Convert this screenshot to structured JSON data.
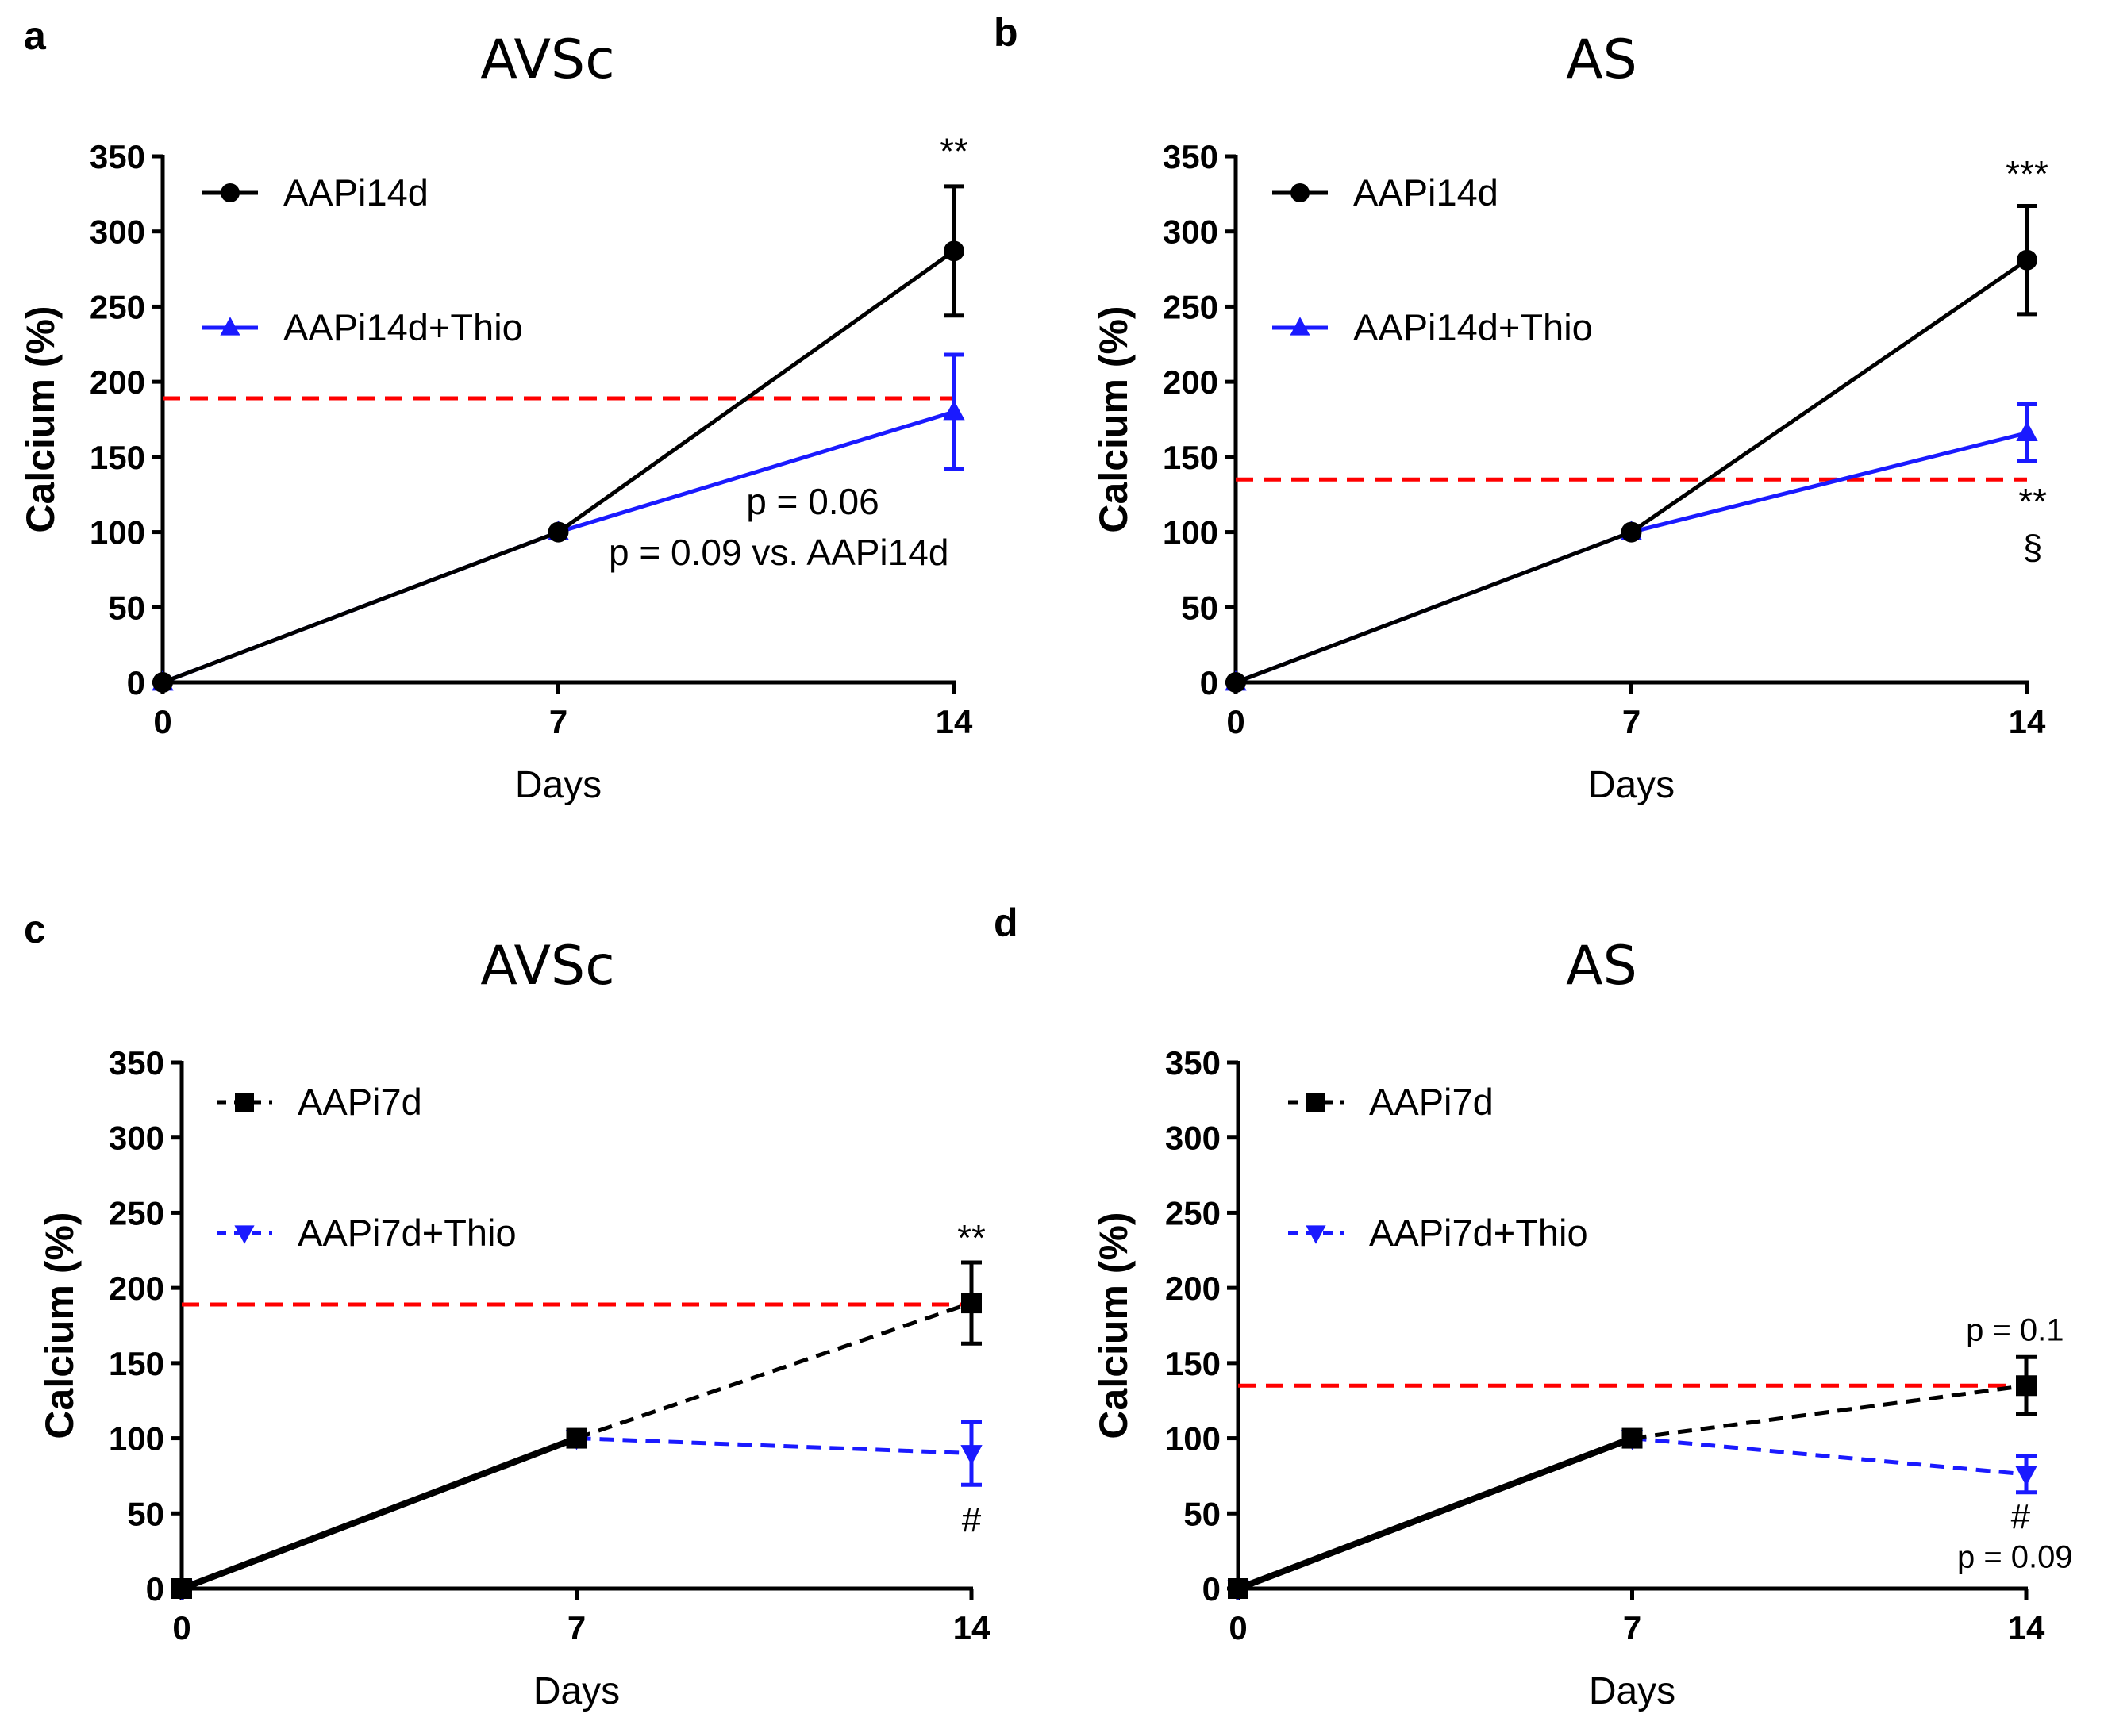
{
  "chart_data": [
    {
      "panel": "a",
      "type": "line",
      "title": "AVSc",
      "xlabel": "Days",
      "ylabel": "Calcium (%)",
      "x": [
        0,
        7,
        14
      ],
      "xticks": [
        "0",
        "7",
        "14"
      ],
      "ylim": [
        0,
        350
      ],
      "yticks": [
        0,
        50,
        100,
        150,
        200,
        250,
        300,
        350
      ],
      "reference_line": {
        "y": 189,
        "color": "#ff0000",
        "style": "dashed"
      },
      "series": [
        {
          "name": "AAPi14d",
          "marker": "circle",
          "color": "#000000",
          "dash": "solid",
          "values": [
            0,
            100,
            287
          ],
          "errors": [
            0,
            0,
            43
          ]
        },
        {
          "name": "AAPi14d+Thio",
          "marker": "triangle-up",
          "color": "#1a1aff",
          "dash": "solid",
          "values": [
            0,
            100,
            180
          ],
          "errors": [
            0,
            0,
            38
          ]
        }
      ],
      "legend": [
        "AAPi14d",
        "AAPi14d+Thio"
      ],
      "annotations": [
        {
          "text": "**",
          "x": 14,
          "y": 345,
          "size": 46
        },
        {
          "text": "p = 0.06",
          "x": 11.5,
          "y": 112,
          "size": 46
        },
        {
          "text": "p = 0.09 vs. AAPi14d",
          "x": 10.9,
          "y": 78,
          "size": 46
        }
      ]
    },
    {
      "panel": "b",
      "type": "line",
      "title": "AS",
      "xlabel": "Days",
      "ylabel": "Calcium (%)",
      "x": [
        0,
        7,
        14
      ],
      "xticks": [
        "0",
        "7",
        "14"
      ],
      "ylim": [
        0,
        350
      ],
      "yticks": [
        0,
        50,
        100,
        150,
        200,
        250,
        300,
        350
      ],
      "reference_line": {
        "y": 135,
        "color": "#ff0000",
        "style": "dashed"
      },
      "series": [
        {
          "name": "AAPi14d",
          "marker": "circle",
          "color": "#000000",
          "dash": "solid",
          "values": [
            0,
            100,
            281
          ],
          "errors": [
            0,
            0,
            36
          ]
        },
        {
          "name": "AAPi14d+Thio",
          "marker": "triangle-up",
          "color": "#1a1aff",
          "dash": "solid",
          "values": [
            0,
            100,
            166
          ],
          "errors": [
            0,
            0,
            19
          ]
        }
      ],
      "legend": [
        "AAPi14d",
        "AAPi14d+Thio"
      ],
      "annotations": [
        {
          "text": "***",
          "x": 14,
          "y": 330,
          "size": 46
        },
        {
          "text": "**",
          "x": 14.1,
          "y": 112,
          "size": 46
        },
        {
          "text": "§",
          "x": 14.1,
          "y": 82,
          "size": 44
        }
      ]
    },
    {
      "panel": "c",
      "type": "line",
      "title": "AVSc",
      "xlabel": "Days",
      "ylabel": "Calcium (%)",
      "x": [
        0,
        7,
        14
      ],
      "xticks": [
        "0",
        "7",
        "14"
      ],
      "ylim": [
        0,
        350
      ],
      "yticks": [
        0,
        50,
        100,
        150,
        200,
        250,
        300,
        350
      ],
      "reference_line": {
        "y": 189,
        "color": "#ff0000",
        "style": "dashed"
      },
      "series": [
        {
          "name": "AAPi7d",
          "marker": "square",
          "color": "#000000",
          "dash": "dashed",
          "values": [
            0,
            100,
            190
          ],
          "errors": [
            0,
            0,
            27
          ]
        },
        {
          "name": "AAPi7d+Thio",
          "marker": "triangle-down",
          "color": "#1a1aff",
          "dash": "dashed",
          "values": [
            0,
            100,
            90
          ],
          "errors": [
            0,
            0,
            21
          ]
        }
      ],
      "legend": [
        "AAPi7d",
        "AAPi7d+Thio"
      ],
      "annotations": [
        {
          "text": "**",
          "x": 14,
          "y": 225,
          "size": 46
        },
        {
          "text": "#",
          "x": 14,
          "y": 38,
          "size": 44
        }
      ]
    },
    {
      "panel": "d",
      "type": "line",
      "title": "AS",
      "xlabel": "Days",
      "ylabel": "Calcium (%)",
      "x": [
        0,
        7,
        14
      ],
      "xticks": [
        "0",
        "7",
        "14"
      ],
      "ylim": [
        0,
        350
      ],
      "yticks": [
        0,
        50,
        100,
        150,
        200,
        250,
        300,
        350
      ],
      "reference_line": {
        "y": 135,
        "color": "#ff0000",
        "style": "dashed"
      },
      "series": [
        {
          "name": "AAPi7d",
          "marker": "square",
          "color": "#000000",
          "dash": "dashed",
          "values": [
            0,
            100,
            135
          ],
          "errors": [
            0,
            0,
            19
          ]
        },
        {
          "name": "AAPi7d+Thio",
          "marker": "triangle-down",
          "color": "#1a1aff",
          "dash": "dashed",
          "values": [
            0,
            100,
            76
          ],
          "errors": [
            0,
            0,
            12
          ]
        }
      ],
      "legend": [
        "AAPi7d",
        "AAPi7d+Thio"
      ],
      "annotations": [
        {
          "text": "p = 0.1",
          "x": 13.8,
          "y": 165,
          "size": 40
        },
        {
          "text": "#",
          "x": 13.9,
          "y": 40,
          "size": 44
        },
        {
          "text": "p = 0.09",
          "x": 13.8,
          "y": 14,
          "size": 40
        }
      ]
    }
  ]
}
